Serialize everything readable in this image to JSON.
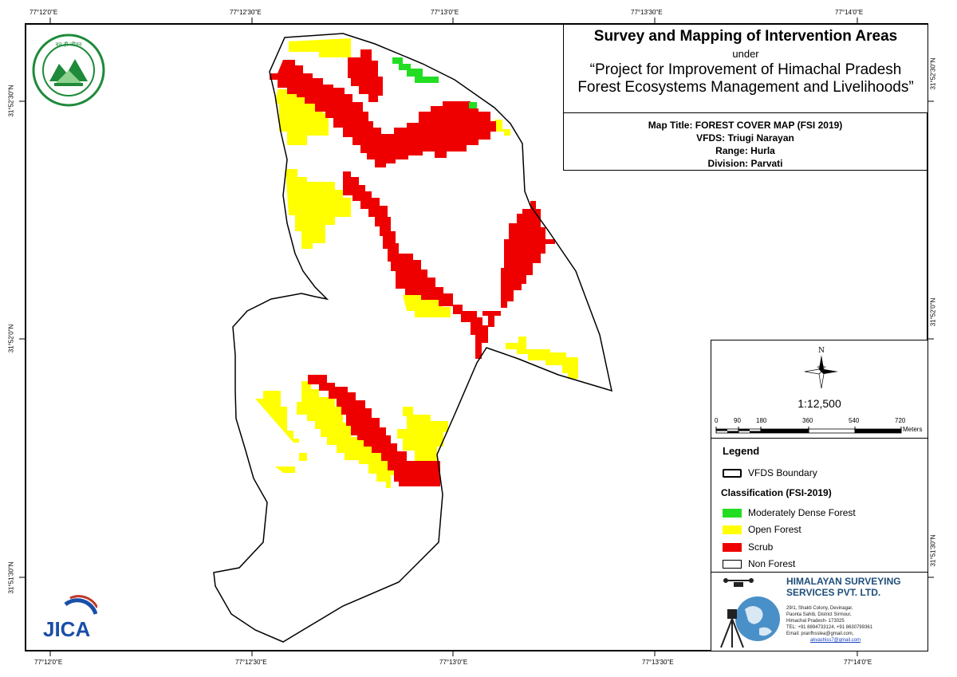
{
  "coords": {
    "top": [
      "77°12'0\"E",
      "77°12'30\"E",
      "77°13'0\"E",
      "77°13'30\"E",
      "77°14'0\"E"
    ],
    "bottom": [
      "77°12'0\"E",
      "77°12'30\"E",
      "77°13'0\"E",
      "77°13'30\"E",
      "77°14'0\"E"
    ],
    "left": [
      "31°52'30\"N",
      "31°52'0\"N",
      "31°51'30\"N"
    ],
    "right": [
      "31°52'30\"N",
      "31°52'0\"N",
      "31°51'30\"N"
    ]
  },
  "title": {
    "main": "Survey and Mapping of Intervention Areas",
    "under": "under",
    "project_line1": "“Project for Improvement of Himachal Pradesh",
    "project_line2": "Forest Ecosystems Management and Livelihoods”"
  },
  "info": {
    "map_title": "Map Title: FOREST COVER MAP (FSI 2019)",
    "vfds": "VFDS: Triugi Narayan",
    "range": "Range: Hurla",
    "division": "Division: Parvati"
  },
  "north_label": "N",
  "scale": {
    "ratio": "1:12,500",
    "labels": [
      "0",
      "90",
      "180",
      "360",
      "540",
      "720"
    ],
    "unit": "Meters"
  },
  "legend": {
    "title": "Legend",
    "boundary": "VFDS Boundary",
    "classification_title": "Classification (FSI-2019)",
    "classes": [
      {
        "label": "Moderately Dense Forest",
        "color": "#22dd22"
      },
      {
        "label": "Open Forest",
        "color": "#ffff00"
      },
      {
        "label": "Scrub",
        "color": "#ee0000"
      },
      {
        "label": "Non Forest",
        "color": "#ffffff"
      }
    ]
  },
  "company": {
    "name_line1": "HIMALAYAN SURVEYING",
    "name_line2": "SERVICES PVT. LTD.",
    "addr1": "29/1, Shakti Colony, Devinagar,",
    "addr2": "Paonta Sahib, District Sirmour,",
    "addr3": "Himachal Pradesh- 173025",
    "tel": "TEL: +91 8894733124, +91 8630799361",
    "email1": "Email: pranfhsslea@gmail.com,",
    "email2": "akvashiss7@gmail.com"
  },
  "logos": {
    "emblem_text_top": "वन ही जीवन",
    "jica": "JICA"
  },
  "colors": {
    "scrub": "#ee0000",
    "open_forest": "#ffff00",
    "moderately_dense": "#22dd22",
    "company": "#1f4e79",
    "jica": "#1a4fa8"
  }
}
